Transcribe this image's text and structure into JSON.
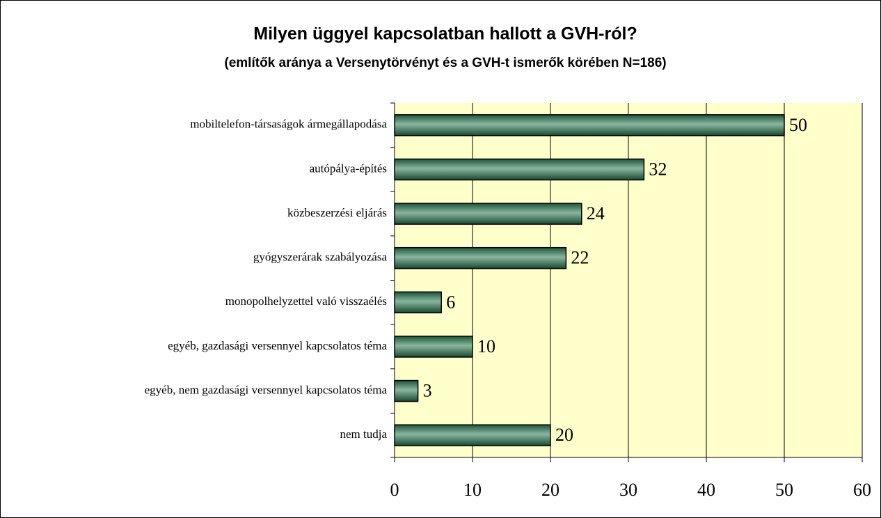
{
  "chart_data": {
    "type": "bar",
    "title": "Milyen üggyel kapcsolatban hallott a GVH-ról?",
    "subtitle": "(említők aránya a Versenytörvényt és a GVH-t ismerők körében N=186)",
    "categories": [
      "mobiltelefon-társaságok ármegállapodása",
      "autópálya-építés",
      "közbeszerzési eljárás",
      "gyógyszerárak szabályozása",
      "monopolhelyzettel való visszaélés",
      "egyéb, gazdasági versennyel kapcsolatos téma",
      "egyéb, nem gazdasági versennyel kapcsolatos téma",
      "nem tudja"
    ],
    "values": [
      50,
      32,
      24,
      22,
      6,
      10,
      3,
      20
    ],
    "color": "#2a7a52",
    "xlim": [
      0,
      60
    ],
    "xticks": [
      0,
      10,
      20,
      30,
      40,
      50,
      60
    ],
    "grid": true
  }
}
